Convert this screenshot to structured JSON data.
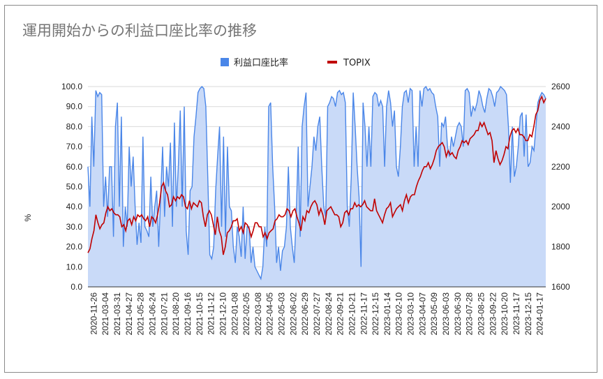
{
  "chart_data": {
    "type": "line",
    "title": "運用開始からの利益口座比率の推移",
    "ylabel": "%",
    "y2label": "",
    "ylim": [
      0,
      100
    ],
    "y2lim": [
      1600,
      2600
    ],
    "yticks": [
      "0.0",
      "10.0",
      "20.0",
      "30.0",
      "40.0",
      "50.0",
      "60.0",
      "70.0",
      "80.0",
      "90.0",
      "100.0"
    ],
    "y2ticks": [
      "1600",
      "1800",
      "2000",
      "2200",
      "2400",
      "2600"
    ],
    "xticks": [
      "2020-11-26",
      "2021-03-04",
      "2021-03-31",
      "2021-04-27",
      "2021-05-28",
      "2021-06-24",
      "2021-07-21",
      "2021-08-20",
      "2021-09-16",
      "2021-10-15",
      "2021-11-12",
      "2021-12-10",
      "2022-01-08",
      "2022-02-05",
      "2022-03-08",
      "2022-04-05",
      "2022-05-03",
      "2022-06-02",
      "2022-06-29",
      "2022-07-27",
      "2022-08-24",
      "2022-09-21",
      "2022-10-21",
      "2022-11-17",
      "2022-12-15",
      "2023-01-14",
      "2023-02-10",
      "2023-03-10",
      "2023-04-07",
      "2023-05-09",
      "2023-06-03",
      "2023-06-30",
      "2023-07-28",
      "2023-08-25",
      "2023-09-22",
      "2023-10-20",
      "2023-11-17",
      "2023-12-15",
      "2024-01-17"
    ],
    "legend_position": "top",
    "grid": true,
    "series": [
      {
        "name": "利益口座比率",
        "type": "area",
        "color": "#4a86e8",
        "fill": "#c9daf8",
        "values": [
          60,
          40,
          85,
          60,
          98,
          95,
          97,
          96,
          40,
          55,
          35,
          60,
          60,
          25,
          80,
          92,
          40,
          85,
          20,
          40,
          30,
          70,
          50,
          65,
          40,
          21,
          32,
          22,
          75,
          30,
          28,
          25,
          55,
          30,
          40,
          48,
          20,
          45,
          70,
          35,
          60,
          50,
          72,
          30,
          82,
          40,
          60,
          88,
          40,
          90,
          28,
          16,
          48,
          50,
          75,
          85,
          97,
          99,
          100,
          99,
          90,
          55,
          16,
          14,
          20,
          48,
          65,
          80,
          30,
          75,
          25,
          70,
          40,
          38,
          20,
          12,
          30,
          25,
          15,
          40,
          14,
          30,
          30,
          12,
          20,
          10,
          8,
          6,
          4,
          10,
          30,
          20,
          90,
          92,
          60,
          40,
          12,
          20,
          8,
          18,
          20,
          30,
          60,
          30,
          20,
          12,
          35,
          70,
          25,
          80,
          90,
          97,
          40,
          50,
          60,
          75,
          68,
          80,
          85,
          60,
          40,
          35,
          90,
          92,
          95,
          94,
          90,
          97,
          98,
          96,
          97,
          92,
          40,
          30,
          55,
          97,
          80,
          60,
          45,
          10,
          92,
          80,
          60,
          80,
          60,
          95,
          97,
          96,
          90,
          93,
          90,
          60,
          90,
          98,
          92,
          80,
          88,
          60,
          55,
          70,
          90,
          97,
          98,
          92,
          99,
          98,
          60,
          80,
          60,
          98,
          90,
          99,
          100,
          98,
          99,
          97,
          96,
          90,
          85,
          60,
          82,
          80,
          85,
          70,
          65,
          75,
          70,
          75,
          80,
          82,
          80,
          70,
          98,
          99,
          97,
          85,
          90,
          88,
          92,
          98,
          95,
          90,
          87,
          94,
          99,
          98,
          95,
          90,
          97,
          98,
          100,
          99,
          98,
          96,
          80,
          52,
          80,
          55,
          60,
          70,
          85,
          87,
          65,
          86,
          60,
          62,
          70,
          68,
          80,
          92,
          95,
          97,
          96,
          94
        ]
      },
      {
        "name": "TOPIX",
        "type": "line",
        "color": "#c00000",
        "axis": "right",
        "values": [
          1770,
          1790,
          1840,
          1880,
          1960,
          1920,
          1890,
          1910,
          1920,
          1970,
          2000,
          1980,
          1990,
          1970,
          1960,
          1960,
          1950,
          1900,
          1910,
          1880,
          1930,
          1940,
          1910,
          1950,
          1930,
          1960,
          1950,
          1960,
          1940,
          1930,
          1950,
          1900,
          1950,
          1940,
          1920,
          1960,
          2020,
          2100,
          2120,
          2080,
          2060,
          2000,
          2010,
          2050,
          2030,
          2050,
          2040,
          2060,
          2050,
          2000,
          1990,
          2030,
          1990,
          2020,
          2010,
          2000,
          2030,
          2020,
          1950,
          1900,
          1960,
          1980,
          1960,
          1910,
          1860,
          1950,
          1880,
          1850,
          1760,
          1800,
          1870,
          1880,
          1900,
          1930,
          1930,
          1940,
          1880,
          1900,
          1870,
          1920,
          1910,
          1890,
          1850,
          1880,
          1920,
          1920,
          1900,
          1900,
          1850,
          1870,
          1840,
          1870,
          1880,
          1890,
          1930,
          1940,
          1960,
          1950,
          1950,
          1960,
          1990,
          1980,
          1950,
          1980,
          1990,
          1950,
          1920,
          1880,
          1950,
          1930,
          1980,
          1970,
          2000,
          2020,
          2030,
          2010,
          1960,
          1990,
          1960,
          1910,
          1980,
          1990,
          2000,
          1980,
          1960,
          1960,
          1950,
          1900,
          1920,
          1970,
          1980,
          1960,
          1990,
          1990,
          2020,
          2000,
          2010,
          2000,
          2010,
          2030,
          2000,
          1990,
          1980,
          1980,
          2040,
          1980,
          1960,
          1940,
          1920,
          1960,
          1990,
          2000,
          2020,
          1950,
          1970,
          1990,
          2000,
          2010,
          1980,
          2030,
          2060,
          2020,
          2050,
          2060,
          2060,
          2100,
          2130,
          2150,
          2180,
          2200,
          2200,
          2220,
          2190,
          2210,
          2240,
          2280,
          2300,
          2310,
          2320,
          2300,
          2250,
          2280,
          2260,
          2270,
          2250,
          2240,
          2280,
          2300,
          2330,
          2320,
          2330,
          2310,
          2340,
          2350,
          2360,
          2380,
          2380,
          2420,
          2400,
          2420,
          2390,
          2360,
          2370,
          2330,
          2220,
          2280,
          2240,
          2210,
          2230,
          2260,
          2300,
          2290,
          2350,
          2380,
          2390,
          2370,
          2390,
          2360,
          2360,
          2350,
          2330,
          2330,
          2360,
          2350,
          2400,
          2460,
          2480,
          2530,
          2550,
          2520,
          2540
        ]
      }
    ]
  }
}
